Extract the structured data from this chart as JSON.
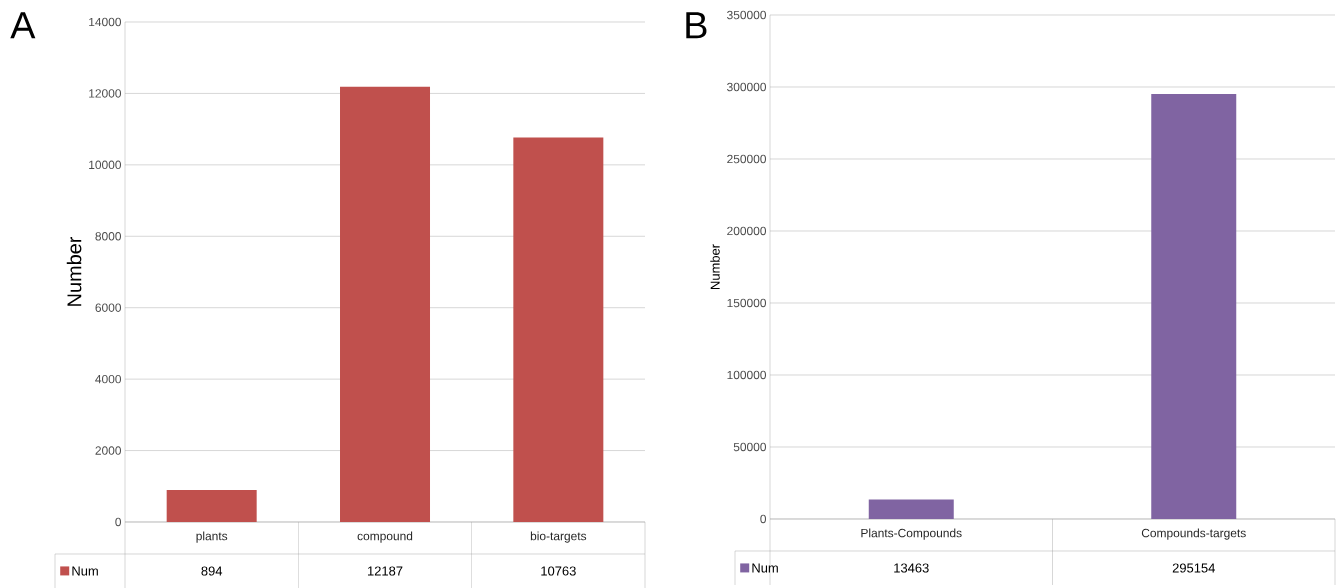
{
  "chart_data": [
    {
      "type": "bar",
      "title": "A",
      "ylabel": "Number",
      "categories": [
        "plants",
        "compound",
        "bio-targets"
      ],
      "series": [
        {
          "name": "Num",
          "color": "#c0504d",
          "values": [
            894,
            12187,
            10763
          ]
        }
      ],
      "ylim": [
        0,
        14000
      ],
      "yticks": [
        0,
        2000,
        4000,
        6000,
        8000,
        10000,
        12000,
        14000
      ],
      "grid": "y",
      "data_labels": true,
      "legend": "bottom"
    },
    {
      "type": "bar",
      "title": "B",
      "ylabel": "Number",
      "categories": [
        "Plants-Compounds",
        "Compounds-targets"
      ],
      "series": [
        {
          "name": "Num",
          "color": "#8064a2",
          "values": [
            13463,
            295154
          ]
        }
      ],
      "ylim": [
        0,
        350000
      ],
      "yticks": [
        0,
        50000,
        100000,
        150000,
        200000,
        250000,
        300000,
        350000
      ],
      "grid": "y",
      "data_labels": true,
      "legend": "bottom"
    }
  ]
}
